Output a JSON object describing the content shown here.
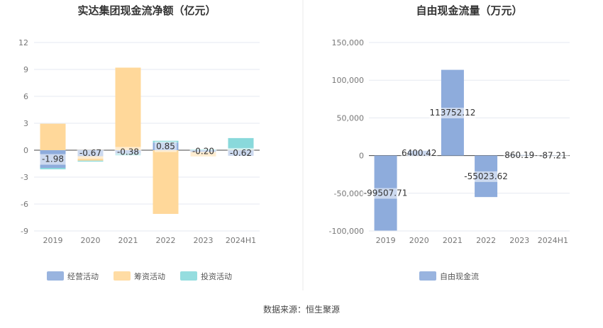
{
  "source_text": "数据来源：恒生聚源",
  "chart_data": [
    {
      "type": "bar",
      "stacked": true,
      "title": "实达集团现金流净额（亿元）",
      "categories": [
        "2019",
        "2020",
        "2021",
        "2022",
        "2023",
        "2024H1"
      ],
      "ylim": [
        -9,
        12
      ],
      "yticks": [
        "-9",
        "-6",
        "-3",
        "0",
        "3",
        "6",
        "9",
        "12"
      ],
      "grid": true,
      "legend_position": "bottom",
      "series": [
        {
          "name": "经营活动",
          "color": "#8eacdc",
          "values": [
            -1.98,
            -0.67,
            -0.38,
            0.85,
            -0.2,
            -0.62
          ],
          "labels": [
            "-1.98",
            "-0.67",
            "-0.38",
            "0.85",
            "-0.20",
            "-0.62"
          ]
        },
        {
          "name": "筹资活动",
          "color": "#ffd89a",
          "values": [
            2.95,
            -0.5,
            9.2,
            -7.1,
            -0.5,
            0.05
          ]
        },
        {
          "name": "投资活动",
          "color": "#89d9db",
          "values": [
            -0.15,
            -0.1,
            -0.2,
            0.2,
            0.1,
            1.3
          ]
        }
      ]
    },
    {
      "type": "bar",
      "title": "自由现金流量（万元）",
      "categories": [
        "2019",
        "2020",
        "2021",
        "2022",
        "2023",
        "2024H1"
      ],
      "ylim": [
        -100000,
        150000
      ],
      "yticks": [
        "-100,000",
        "-50,000",
        "0",
        "50,000",
        "100,000",
        "150,000"
      ],
      "grid": true,
      "legend_position": "bottom",
      "series": [
        {
          "name": "自由现金流",
          "color": "#8eacdc",
          "values": [
            -99507.71,
            6400.42,
            113752.12,
            -55023.62,
            860.19,
            -87.21
          ],
          "labels": [
            "-99507.71",
            "6400.42",
            "113752.12",
            "-55023.62",
            "860.19",
            "-87.21"
          ]
        }
      ]
    }
  ]
}
